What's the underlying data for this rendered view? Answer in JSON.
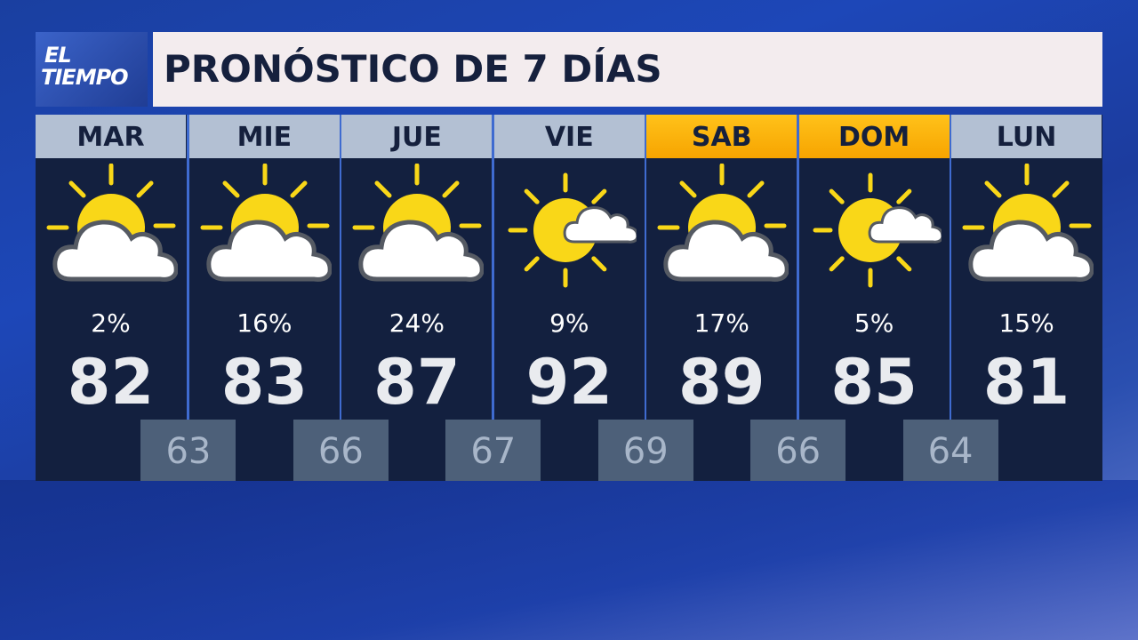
{
  "logo": {
    "line1": "EL",
    "line2": "TIEMPO"
  },
  "title": "PRONÓSTICO DE 7 DÍAS",
  "colors": {
    "weekend_header": "#f7a400",
    "weekday_header": "#b3c0d3",
    "panel": "#13203f",
    "low_box": "#4d6079",
    "sun": "#f9d718"
  },
  "days": [
    {
      "day": "MAR",
      "icon": "partly-cloudy-icon",
      "precip": "2%",
      "high": "82",
      "low": "63",
      "weekend": false
    },
    {
      "day": "MIE",
      "icon": "partly-cloudy-icon",
      "precip": "16%",
      "high": "83",
      "low": "66",
      "weekend": false
    },
    {
      "day": "JUE",
      "icon": "partly-cloudy-icon",
      "precip": "24%",
      "high": "87",
      "low": "67",
      "weekend": false
    },
    {
      "day": "VIE",
      "icon": "mostly-sunny-icon",
      "precip": "9%",
      "high": "92",
      "low": "69",
      "weekend": false
    },
    {
      "day": "SAB",
      "icon": "partly-cloudy-icon",
      "precip": "17%",
      "high": "89",
      "low": "66",
      "weekend": true
    },
    {
      "day": "DOM",
      "icon": "mostly-sunny-icon",
      "precip": "5%",
      "high": "85",
      "low": "64",
      "weekend": true
    },
    {
      "day": "LUN",
      "icon": "partly-cloudy-icon",
      "precip": "15%",
      "high": "81",
      "weekend": false
    }
  ]
}
